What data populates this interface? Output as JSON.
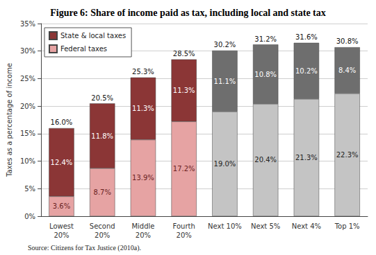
{
  "chart_data": {
    "type": "bar",
    "title": "Figure 6: Share of income paid as tax, including local and state tax",
    "source": "Source: Citizens for Tax Justice (2010a).",
    "y_label": "Taxes as a percentage of income",
    "categories": [
      "Lowest\n20%",
      "Second\n20%",
      "Middle\n20%",
      "Fourth\n20%",
      "Next 10%",
      "Next 5%",
      "Next 4%",
      "Top 1%"
    ],
    "series": [
      {
        "name": "Federal taxes",
        "color": "#e6a3a3",
        "colors": [
          "#e6a3a3",
          "#e6a3a3",
          "#e6a3a3",
          "#e6a3a3",
          "#c4c4c4",
          "#c4c4c4",
          "#c4c4c4",
          "#c4c4c4"
        ],
        "values": [
          3.6,
          8.7,
          13.9,
          17.2,
          19.0,
          20.4,
          21.3,
          22.3
        ],
        "value_labels": [
          "3.6%",
          "8.7%",
          "13.9%",
          "17.2%",
          "19.0%",
          "20.4%",
          "21.3%",
          "22.3%"
        ]
      },
      {
        "name": "State & local taxes",
        "color": "#8b3636",
        "colors": [
          "#8b3636",
          "#8b3636",
          "#8b3636",
          "#8b3636",
          "#6e6e6e",
          "#6e6e6e",
          "#6e6e6e",
          "#6e6e6e"
        ],
        "values": [
          12.4,
          11.8,
          11.3,
          11.3,
          11.1,
          10.8,
          10.2,
          8.4
        ],
        "value_labels": [
          "12.4%",
          "11.8%",
          "11.3%",
          "11.3%",
          "11.1%",
          "10.8%",
          "10.2%",
          "8.4%"
        ]
      }
    ],
    "totals": [
      16.0,
      20.5,
      25.3,
      28.5,
      30.2,
      31.2,
      31.6,
      30.8
    ],
    "total_labels": [
      "16.0%",
      "20.5%",
      "25.3%",
      "28.5%",
      "30.2%",
      "31.2%",
      "31.6%",
      "30.8%"
    ],
    "ylim": [
      0,
      35
    ],
    "yticks": [
      {
        "value": 0,
        "label": "0%"
      },
      {
        "value": 5,
        "label": "5%"
      },
      {
        "value": 10,
        "label": "10%"
      },
      {
        "value": 15,
        "label": "15%"
      },
      {
        "value": 20,
        "label": "20%"
      },
      {
        "value": 25,
        "label": "25%"
      },
      {
        "value": 30,
        "label": "30%"
      },
      {
        "value": 35,
        "label": "35%"
      }
    ],
    "stacked": true,
    "data_labels": true,
    "grid": true,
    "legend": "top-left"
  }
}
